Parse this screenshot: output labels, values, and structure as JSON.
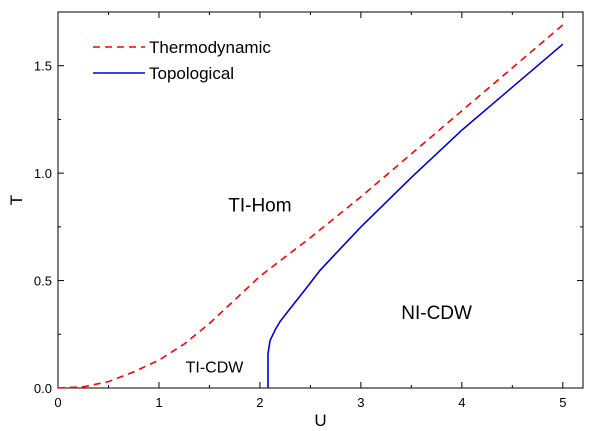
{
  "chart_data": {
    "type": "line",
    "xlabel": "U",
    "ylabel": "T",
    "xlim": [
      0,
      5.2
    ],
    "ylim": [
      0,
      1.75
    ],
    "xticks": [
      0,
      1,
      2,
      3,
      4,
      5
    ],
    "yticks": [
      0.0,
      0.5,
      1.0,
      1.5
    ],
    "xtick_labels": [
      "0",
      "1",
      "2",
      "3",
      "4",
      "5"
    ],
    "ytick_labels": [
      "0.0",
      "0.5",
      "1.0",
      "1.5"
    ],
    "grid": false,
    "legend_position": "top-left",
    "series": [
      {
        "name": "Thermodynamic",
        "color": "#ff0000",
        "style": "dashed",
        "x": [
          0,
          0.25,
          0.5,
          0.75,
          1.0,
          1.25,
          1.5,
          1.75,
          2.0,
          2.5,
          3.0,
          3.5,
          4.0,
          4.5,
          5.0
        ],
        "y": [
          0,
          0.005,
          0.03,
          0.075,
          0.13,
          0.205,
          0.3,
          0.41,
          0.52,
          0.7,
          0.89,
          1.09,
          1.29,
          1.49,
          1.69
        ]
      },
      {
        "name": "Topological",
        "color": "#0000dd",
        "style": "solid",
        "x": [
          2.08,
          2.08,
          2.1,
          2.15,
          2.2,
          2.3,
          2.45,
          2.6,
          2.8,
          3.0,
          3.5,
          4.0,
          4.5,
          5.0
        ],
        "y": [
          0,
          0.16,
          0.22,
          0.27,
          0.31,
          0.37,
          0.46,
          0.55,
          0.65,
          0.75,
          0.98,
          1.2,
          1.4,
          1.6
        ]
      }
    ],
    "annotations": [
      {
        "text": "TI-Hom",
        "x": 2.0,
        "y": 0.85,
        "size": "large"
      },
      {
        "text": "NI-CDW",
        "x": 3.75,
        "y": 0.35,
        "size": "large"
      },
      {
        "text": "TI-CDW",
        "x": 1.55,
        "y": 0.1,
        "size": "small"
      }
    ]
  }
}
